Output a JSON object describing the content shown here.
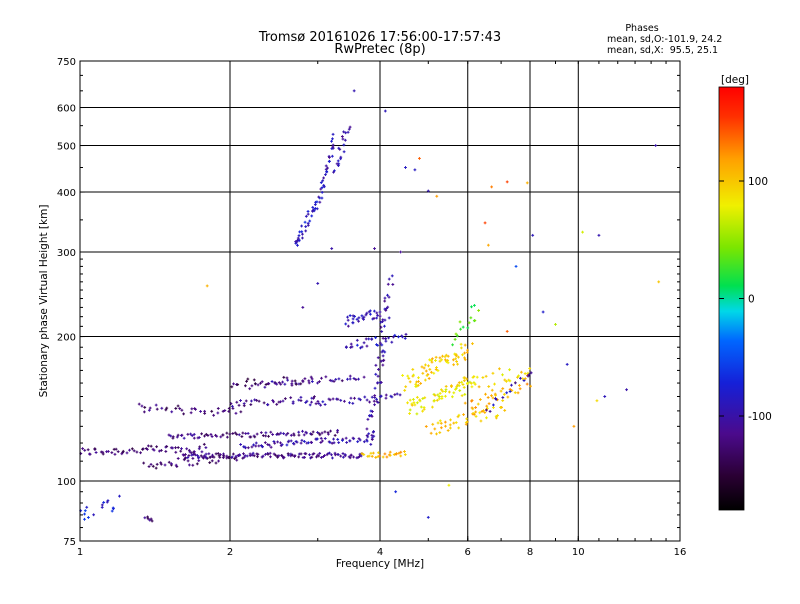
{
  "chart_data": {
    "type": "scatter",
    "title": "Tromsø 20161026 17:56:00-17:57:43",
    "subtitle": "RwPretec (8p)",
    "xlabel": "Frequency [MHz]",
    "ylabel": "Stationary phase Virtual Height [km]",
    "x_scale": "log",
    "y_scale": "log",
    "xlim": [
      1,
      16
    ],
    "ylim": [
      75,
      750
    ],
    "x_ticks": [
      {
        "label": "1",
        "value": 1
      },
      {
        "label": "2",
        "value": 2
      },
      {
        "label": "4",
        "value": 4
      },
      {
        "label": "6",
        "value": 6
      },
      {
        "label": "8",
        "value": 8
      },
      {
        "label": "10",
        "value": 10
      },
      {
        "label": "16",
        "value": 16
      }
    ],
    "x_gridlines": [
      2,
      4,
      6,
      8,
      10
    ],
    "y_ticks": [
      {
        "label": "75",
        "value": 75
      },
      {
        "label": "100",
        "value": 100
      },
      {
        "label": "200",
        "value": 200
      },
      {
        "label": "300",
        "value": 300
      },
      {
        "label": "400",
        "value": 400
      },
      {
        "label": "500",
        "value": 500
      },
      {
        "label": "600",
        "value": 600
      },
      {
        "label": "750",
        "value": 750
      }
    ],
    "y_gridlines": [
      100,
      200,
      300,
      400,
      500,
      600
    ],
    "grid": true,
    "info_box": {
      "heading": "Phases",
      "line1": "mean, sd,O:-101.9, 24.2",
      "line2": "mean, sd,X:  95.5, 25.1"
    },
    "colorbar": {
      "label": "[deg]",
      "range": [
        -180,
        180
      ],
      "ticks": [
        {
          "label": "100",
          "value": 100
        },
        {
          "label": "0",
          "value": 0
        },
        {
          "label": "-100",
          "value": -100
        }
      ]
    },
    "traces": [
      {
        "x": [
          1.0,
          1.8
        ],
        "y": [
          115,
          117
        ],
        "phase": -125,
        "n": 60,
        "spread": 0.02
      },
      {
        "x": [
          1.35,
          2.1
        ],
        "y": [
          108,
          112
        ],
        "phase": -128,
        "n": 40,
        "spread": 0.02
      },
      {
        "x": [
          1.6,
          3.7
        ],
        "y": [
          113,
          113
        ],
        "phase": -115,
        "n": 120,
        "spread": 0.012
      },
      {
        "x": [
          1.5,
          3.3
        ],
        "y": [
          124,
          126
        ],
        "phase": -118,
        "n": 80,
        "spread": 0.012
      },
      {
        "x": [
          1.3,
          2.1
        ],
        "y": [
          142,
          139
        ],
        "phase": -125,
        "n": 35,
        "spread": 0.02
      },
      {
        "x": [
          2.1,
          3.9
        ],
        "y": [
          118,
          123
        ],
        "phase": -100,
        "n": 70,
        "spread": 0.015
      },
      {
        "x": [
          2.0,
          3.0
        ],
        "y": [
          145,
          148
        ],
        "phase": -112,
        "n": 35,
        "spread": 0.015
      },
      {
        "x": [
          2.9,
          4.4
        ],
        "y": [
          145,
          150
        ],
        "phase": -102,
        "n": 35,
        "spread": 0.015
      },
      {
        "x": [
          2.2,
          3.7
        ],
        "y": [
          158,
          165
        ],
        "phase": -110,
        "n": 40,
        "spread": 0.015
      },
      {
        "x": [
          3.7,
          4.5
        ],
        "y": [
          113,
          114
        ],
        "phase": 110,
        "n": 25,
        "spread": 0.012
      },
      {
        "x": [
          3.8,
          4.2
        ],
        "y": [
          120,
          260
        ],
        "phase": -100,
        "n": 60,
        "spread": 0.03
      },
      {
        "x": [
          3.4,
          4.0
        ],
        "y": [
          215,
          225
        ],
        "phase": -95,
        "n": 30,
        "spread": 0.025
      },
      {
        "x": [
          3.4,
          4.5
        ],
        "y": [
          190,
          200
        ],
        "phase": -92,
        "n": 30,
        "spread": 0.025
      },
      {
        "x": [
          2.7,
          3.05
        ],
        "y": [
          310,
          395
        ],
        "phase": -85,
        "n": 40,
        "spread": 0.02
      },
      {
        "x": [
          3.05,
          3.25
        ],
        "y": [
          400,
          520
        ],
        "phase": -95,
        "n": 25,
        "spread": 0.02
      },
      {
        "x": [
          3.25,
          3.45
        ],
        "y": [
          440,
          550
        ],
        "phase": -100,
        "n": 20,
        "spread": 0.02
      },
      {
        "x": [
          4.5,
          6.0
        ],
        "y": [
          160,
          188
        ],
        "phase": 95,
        "n": 70,
        "spread": 0.04
      },
      {
        "x": [
          4.5,
          6.2
        ],
        "y": [
          140,
          160
        ],
        "phase": 85,
        "n": 60,
        "spread": 0.04
      },
      {
        "x": [
          5.0,
          7.0
        ],
        "y": [
          128,
          140
        ],
        "phase": 100,
        "n": 45,
        "spread": 0.03
      },
      {
        "x": [
          6.0,
          8.0
        ],
        "y": [
          140,
          165
        ],
        "phase": 110,
        "n": 40,
        "spread": 0.04
      },
      {
        "x": [
          5.5,
          8.0
        ],
        "y": [
          155,
          172
        ],
        "phase": 90,
        "n": 25,
        "spread": 0.04
      },
      {
        "x": [
          6.5,
          8.1
        ],
        "y": [
          140,
          170
        ],
        "phase": -95,
        "n": 15,
        "spread": 0.02
      },
      {
        "x": [
          5.6,
          6.3
        ],
        "y": [
          195,
          230
        ],
        "phase": 30,
        "n": 15,
        "spread": 0.03
      },
      {
        "x": [
          2.0,
          2.9
        ],
        "y": [
          160,
          162
        ],
        "phase": -130,
        "n": 25,
        "spread": 0.02
      },
      {
        "x": [
          1.0,
          1.05
        ],
        "y": [
          84,
          86
        ],
        "phase": -75,
        "n": 10,
        "spread": 0.03
      },
      {
        "x": [
          1.1,
          1.18
        ],
        "y": [
          90,
          88
        ],
        "phase": -80,
        "n": 8,
        "spread": 0.03
      },
      {
        "x": [
          1.36,
          1.4
        ],
        "y": [
          85,
          84
        ],
        "phase": -125,
        "n": 6,
        "spread": 0.02
      }
    ],
    "points": [
      [
        3.55,
        650,
        -95
      ],
      [
        4.5,
        450,
        -85
      ],
      [
        4.7,
        445,
        -85
      ],
      [
        4.8,
        470,
        140
      ],
      [
        4.1,
        590,
        -90
      ],
      [
        5.0,
        402,
        -95
      ],
      [
        5.2,
        392,
        120
      ],
      [
        6.7,
        410,
        130
      ],
      [
        7.2,
        420,
        150
      ],
      [
        7.9,
        418,
        110
      ],
      [
        8.1,
        325,
        -90
      ],
      [
        10.2,
        330,
        70
      ],
      [
        11.0,
        325,
        -95
      ],
      [
        14.3,
        500,
        -100
      ],
      [
        14.5,
        260,
        100
      ],
      [
        3.9,
        305,
        -110
      ],
      [
        4.4,
        300,
        -110
      ],
      [
        3.2,
        305,
        -100
      ],
      [
        6.6,
        310,
        115
      ],
      [
        6.5,
        345,
        150
      ],
      [
        7.5,
        280,
        -50
      ],
      [
        9.5,
        175,
        -85
      ],
      [
        11.3,
        150,
        -90
      ],
      [
        9.8,
        130,
        120
      ],
      [
        1.2,
        93,
        -85
      ],
      [
        2.8,
        230,
        -110
      ],
      [
        3.0,
        258,
        -95
      ],
      [
        1.8,
        255,
        110
      ],
      [
        4.3,
        95,
        -70
      ],
      [
        5.5,
        98,
        80
      ],
      [
        5.0,
        84,
        -80
      ],
      [
        8.5,
        225,
        -80
      ],
      [
        9.0,
        212,
        60
      ],
      [
        7.2,
        205,
        140
      ],
      [
        10.9,
        147,
        90
      ],
      [
        12.5,
        155,
        -100
      ]
    ]
  }
}
